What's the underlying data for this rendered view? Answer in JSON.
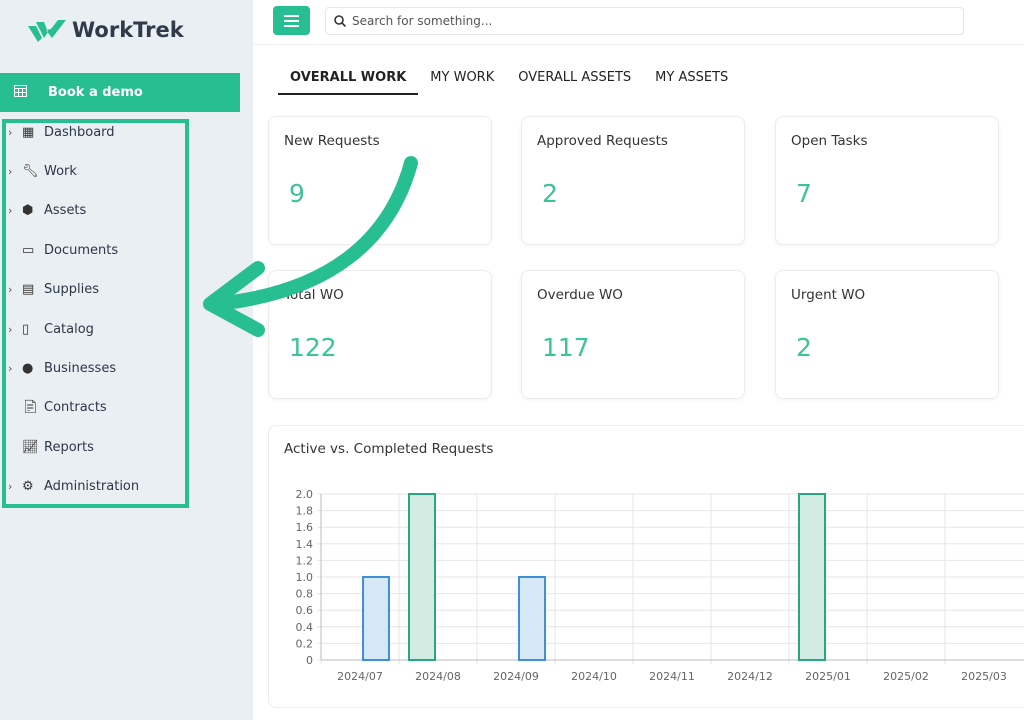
{
  "brand": {
    "name": "WorkTrek",
    "color": "#27be91"
  },
  "sidebar": {
    "demo": "Book a demo",
    "items": [
      {
        "label": "Dashboard",
        "chevron": true,
        "icon": "dashboard-icon"
      },
      {
        "label": "Work",
        "chevron": true,
        "icon": "wrench-icon"
      },
      {
        "label": "Assets",
        "chevron": true,
        "icon": "box-icon"
      },
      {
        "label": "Documents",
        "chevron": false,
        "icon": "document-icon"
      },
      {
        "label": "Supplies",
        "chevron": true,
        "icon": "archive-icon"
      },
      {
        "label": "Catalog",
        "chevron": true,
        "icon": "catalog-icon"
      },
      {
        "label": "Businesses",
        "chevron": true,
        "icon": "user-icon"
      },
      {
        "label": "Contracts",
        "chevron": false,
        "icon": "contract-icon"
      },
      {
        "label": "Reports",
        "chevron": false,
        "icon": "report-icon"
      },
      {
        "label": "Administration",
        "chevron": true,
        "icon": "gear-icon"
      }
    ]
  },
  "search": {
    "placeholder": "Search for something..."
  },
  "tabs": [
    "OVERALL WORK",
    "MY WORK",
    "OVERALL ASSETS",
    "MY ASSETS"
  ],
  "cards": [
    {
      "title": "New Requests",
      "value": "9"
    },
    {
      "title": "Approved Requests",
      "value": "2"
    },
    {
      "title": "Open Tasks",
      "value": "7"
    },
    {
      "title": "Total WO",
      "value": "122"
    },
    {
      "title": "Overdue WO",
      "value": "117"
    },
    {
      "title": "Urgent WO",
      "value": "2"
    }
  ],
  "chart_data": {
    "type": "bar",
    "title": "Active vs. Completed Requests",
    "categories": [
      "2024/07",
      "2024/08",
      "2024/09",
      "2024/10",
      "2024/11",
      "2024/12",
      "2025/01",
      "2025/02",
      "2025/03"
    ],
    "series": [
      {
        "color": "#3d8fd6",
        "fill": "#d6e8f7",
        "values": [
          1,
          0,
          1,
          0,
          0,
          0,
          0,
          0,
          0
        ]
      },
      {
        "color": "#27a67f",
        "fill": "#d2ece3",
        "values": [
          0,
          2,
          0,
          0,
          0,
          0,
          2,
          0,
          0
        ]
      }
    ],
    "ylim": [
      0,
      2
    ],
    "yticks": [
      "0",
      "0.2",
      "0.4",
      "0.6",
      "0.8",
      "1.0",
      "1.2",
      "1.4",
      "1.6",
      "1.8",
      "2.0"
    ],
    "grid": true
  }
}
